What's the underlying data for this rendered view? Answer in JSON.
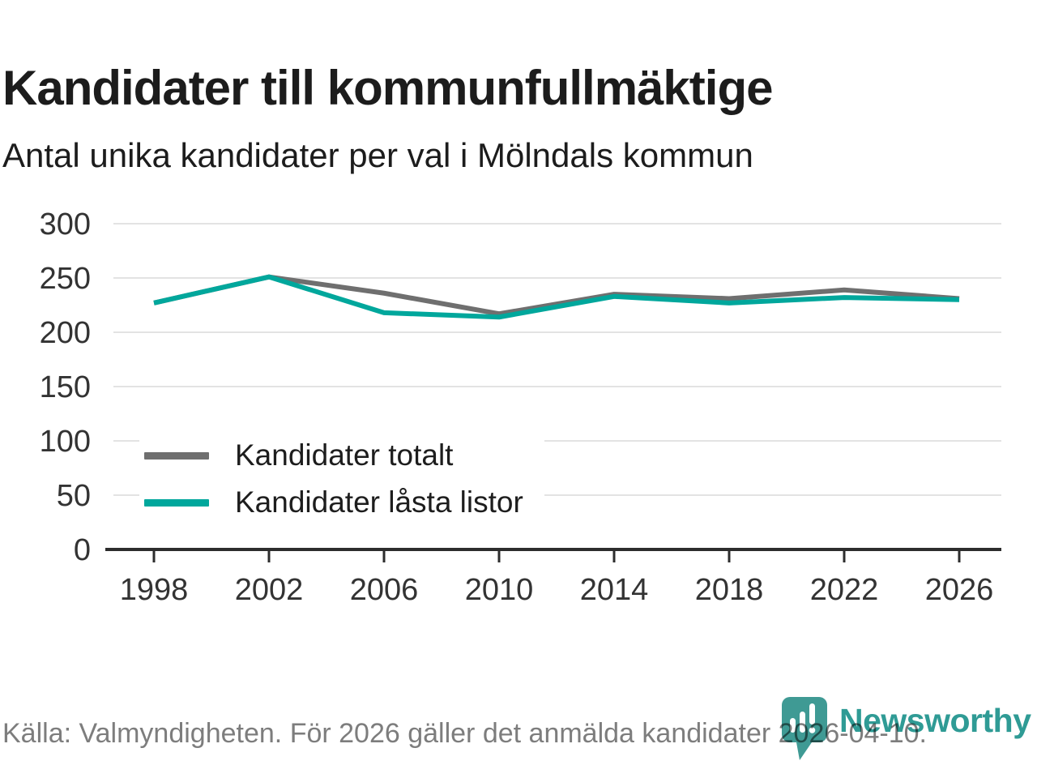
{
  "page": {
    "title": "Kandidater till kommunfullmäktige",
    "subtitle": "Antal unika kandidater per val i Mölndals kommun"
  },
  "footer": {
    "source": "Källa: Valmyndigheten. För 2026 gäller det anmälda kandidater 2026-04-10."
  },
  "branding": {
    "name": "Newsworthy",
    "icon": "bar-chart-pin-icon",
    "wordmark_color": "#2f9b95",
    "icon_color": "#3f9a94"
  },
  "colors": {
    "total_line": "#6f6f6f",
    "locked_line": "#00a79c",
    "grid": "#e3e3e3",
    "axis": "#2d2d2d",
    "tick_text": "#333333",
    "heading_text": "#1c1c1c",
    "footer_text": "#7d7d7d"
  },
  "legend": {
    "items": [
      {
        "label": "Kandidater totalt",
        "color": "#6f6f6f"
      },
      {
        "label": "Kandidater låsta listor",
        "color": "#00a79c"
      }
    ]
  },
  "chart_data": {
    "type": "line",
    "title": "Kandidater till kommunfullmäktige",
    "subtitle": "Antal unika kandidater per val i Mölndals kommun",
    "x": [
      1998,
      2002,
      2006,
      2010,
      2014,
      2018,
      2022,
      2026
    ],
    "series": [
      {
        "name": "Kandidater totalt",
        "color": "#6f6f6f",
        "values": [
          227,
          251,
          236,
          217,
          235,
          231,
          239,
          231
        ]
      },
      {
        "name": "Kandidater låsta listor",
        "color": "#00a79c",
        "values": [
          227,
          251,
          218,
          214,
          233,
          227,
          232,
          230
        ]
      }
    ],
    "xlabel": "",
    "ylabel": "",
    "ylim": [
      0,
      300
    ],
    "yticks": [
      0,
      50,
      100,
      150,
      200,
      250,
      300
    ],
    "xticks": [
      1998,
      2002,
      2006,
      2010,
      2014,
      2018,
      2022,
      2026
    ],
    "grid": "horizontal",
    "legend_position": "inside-lower-left"
  }
}
